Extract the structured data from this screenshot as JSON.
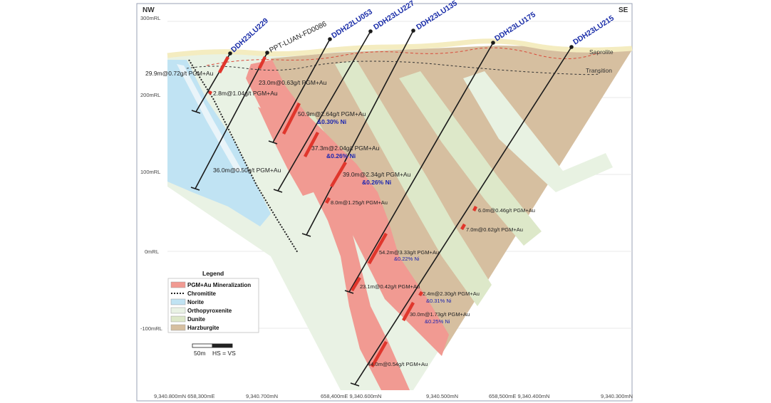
{
  "corners": {
    "left": "NW",
    "right": "SE"
  },
  "elevation_labels": [
    "300mRL",
    "200mRL",
    "100mRL",
    "0mRL",
    "-100mRL"
  ],
  "easting_labels": [
    "9,340.800mN 658,300mE",
    "9,340.700mN",
    "658,400mE 9,340.600mN",
    "9,340.500mN",
    "658,500mE 9,340.400mN",
    "9,340.300mN"
  ],
  "surfaces": {
    "saprolite": "Saprolite",
    "transition": "Transition"
  },
  "drillholes": {
    "h1": "DDH23LU229",
    "h2": "PPT-LUAN-FD0086",
    "h3": "DDH22LU053",
    "h4": "DDH23LU227",
    "h5": "DDH23LU135",
    "h6": "DDH23LU175",
    "h7": "DDH23LU215"
  },
  "intercepts": {
    "i1": "29.9m@0.72g/t PGM+Au",
    "i2": "2.8m@1.04g/t PGM+Au",
    "i3": "23.0m@0.63g/t PGM+Au",
    "i4": "50.9m@2.64g/t PGM+Au",
    "i4ni": "&0.30% Ni",
    "i5": "37.3m@2.04g/t PGM+Au",
    "i5ni": "&0.26% Ni",
    "i6": "36.0m@0.50g/t PGM+Au",
    "i7": "39.0m@2.34g/t PGM+Au",
    "i7ni": "&0.26% Ni",
    "i8": "8.0m@1.25g/t PGM+Au",
    "i9": "6.0m@0.46g/t PGM+Au",
    "i10": "7.0m@0.62g/t PGM+Au",
    "i11": "54.2m@3.33g/t PGM+Au",
    "i11ni": "&0.22% Ni",
    "i12": "23.1m@0.42g/t PGM+Au",
    "i13": "2.4m@2.30g/t PGM+Au",
    "i13ni": "&0.31% Ni",
    "i14": "30.0m@1.73g/t PGM+Au",
    "i14ni": "&0.25% Ni",
    "i15": "44.0m@0.54g/t PGM+Au"
  },
  "legend": {
    "title": "Legend",
    "items": [
      "PGM+Au Mineralization",
      "Chromitite",
      "Norite",
      "Orthopyroxenite",
      "Dunite",
      "Harzburgite"
    ]
  },
  "scale_bar": {
    "label": "50m",
    "note": "HS = VS"
  },
  "colors": {
    "mineralization": "#f19a92",
    "norite": "#bfe3f2",
    "orthopyroxenite": "#e8f2e2",
    "dunite": "#dde7c7",
    "harzburgite": "#d5be9f",
    "hole_name": "#1a2da8"
  }
}
